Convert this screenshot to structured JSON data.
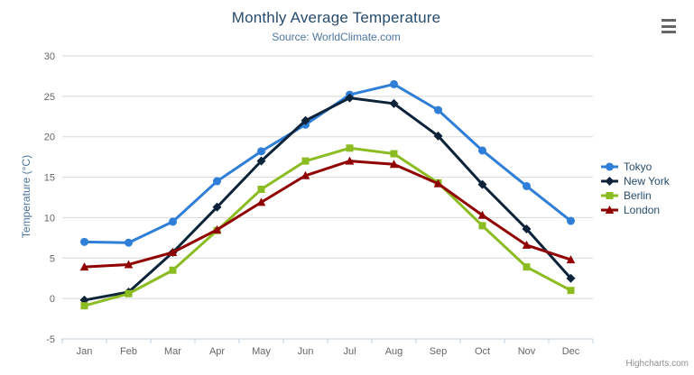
{
  "header": {
    "title": "Monthly Average Temperature",
    "subtitle": "Source: WorldClimate.com"
  },
  "credits": {
    "label": "Highcharts.com"
  },
  "colors": {
    "grid": "#d8d8d8",
    "axis_line": "#c0d0e0",
    "tick_label": "#666666",
    "title": "#274b6d",
    "subtitle": "#4d759e",
    "axis_title": "#4d759e",
    "legend_text": "#274b6d",
    "credits": "#909090"
  },
  "chart_data": {
    "type": "line",
    "title": "Monthly Average Temperature",
    "subtitle": "Source: WorldClimate.com",
    "xlabel": "",
    "ylabel": "Temperature (°C)",
    "ylim": [
      -5,
      30
    ],
    "ytick_interval": 5,
    "grid": true,
    "legend_position": "right",
    "categories": [
      "Jan",
      "Feb",
      "Mar",
      "Apr",
      "May",
      "Jun",
      "Jul",
      "Aug",
      "Sep",
      "Oct",
      "Nov",
      "Dec"
    ],
    "series": [
      {
        "name": "Tokyo",
        "color": "#2f7ed8",
        "marker": "circle",
        "values": [
          7.0,
          6.9,
          9.5,
          14.5,
          18.2,
          21.5,
          25.2,
          26.5,
          23.3,
          18.3,
          13.9,
          9.6
        ]
      },
      {
        "name": "New York",
        "color": "#0d233a",
        "marker": "diamond",
        "values": [
          -0.2,
          0.8,
          5.7,
          11.3,
          17.0,
          22.0,
          24.8,
          24.1,
          20.1,
          14.1,
          8.6,
          2.5
        ]
      },
      {
        "name": "Berlin",
        "color": "#8bbc21",
        "marker": "square",
        "values": [
          -0.9,
          0.6,
          3.5,
          8.4,
          13.5,
          17.0,
          18.6,
          17.9,
          14.3,
          9.0,
          3.9,
          1.0
        ]
      },
      {
        "name": "London",
        "color": "#910000",
        "marker": "triangle",
        "values": [
          3.9,
          4.2,
          5.7,
          8.5,
          11.9,
          15.2,
          17.0,
          16.6,
          14.2,
          10.3,
          6.6,
          4.8
        ]
      }
    ]
  }
}
